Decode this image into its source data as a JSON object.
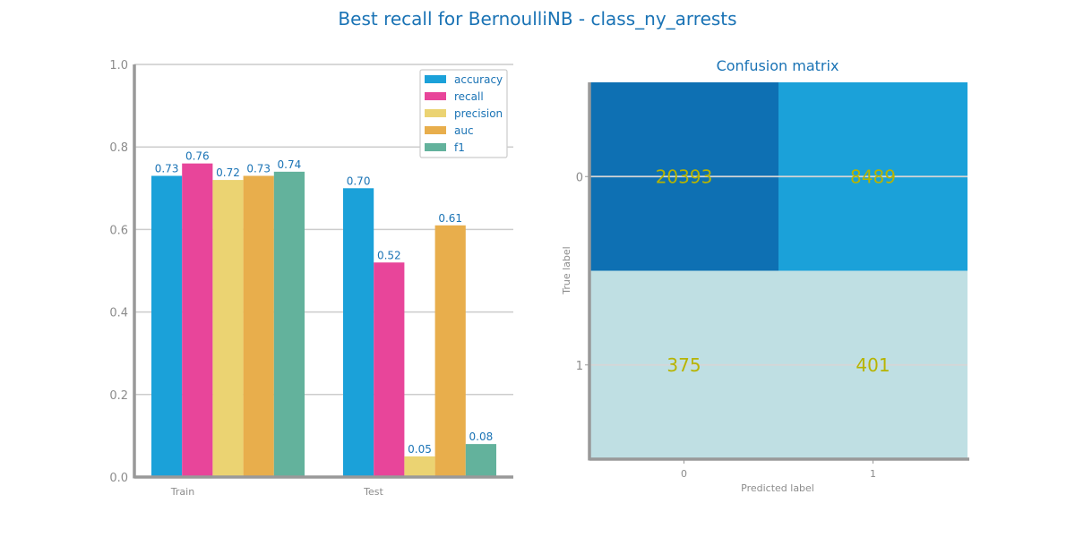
{
  "suptitle": "Best recall for BernoulliNB  - class_ny_arrests",
  "chart_data": [
    {
      "type": "bar",
      "categories": [
        "Train",
        "Test"
      ],
      "series": [
        {
          "name": "accuracy",
          "values": [
            0.73,
            0.7
          ],
          "color": "#1ba1d9"
        },
        {
          "name": "recall",
          "values": [
            0.76,
            0.52
          ],
          "color": "#e8459a"
        },
        {
          "name": "precision",
          "values": [
            0.72,
            0.05
          ],
          "color": "#ebd372"
        },
        {
          "name": "auc",
          "values": [
            0.73,
            0.61
          ],
          "color": "#e8ae4c"
        },
        {
          "name": "f1",
          "values": [
            0.74,
            0.08
          ],
          "color": "#63b29c"
        }
      ],
      "value_labels": [
        [
          "0.73",
          "0.70"
        ],
        [
          "0.76",
          "0.52"
        ],
        [
          "0.72",
          "0.05"
        ],
        [
          "0.73",
          "0.61"
        ],
        [
          "0.74",
          "0.08"
        ]
      ],
      "ylim": [
        0,
        1.0
      ],
      "yticks": [
        "0.0",
        "0.2",
        "0.4",
        "0.6",
        "0.8",
        "1.0"
      ],
      "grid": true,
      "legend": "top-right",
      "title": "",
      "xlabel": "",
      "ylabel": ""
    },
    {
      "type": "heatmap",
      "title": "Confusion matrix",
      "xlabel": "Predicted label",
      "ylabel": "True label",
      "x_ticks": [
        "0",
        "1"
      ],
      "y_ticks": [
        "0",
        "1"
      ],
      "values": [
        [
          20393,
          8489
        ],
        [
          375,
          401
        ]
      ],
      "cell_colors": [
        [
          "#0e70b3",
          "#1ba1d9"
        ],
        [
          "#bfdfe3",
          "#bfdfe3"
        ]
      ],
      "label_color": "#b7b400"
    }
  ]
}
